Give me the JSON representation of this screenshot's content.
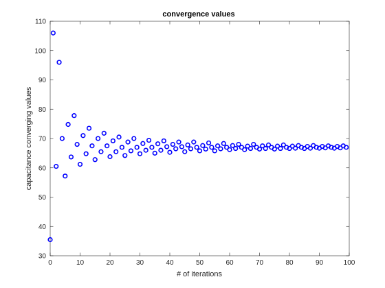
{
  "chart_data": {
    "type": "scatter",
    "title": "convergence values",
    "xlabel": "# of iterations",
    "ylabel": "capacitance converging values",
    "xlim": [
      0,
      100
    ],
    "ylim": [
      30,
      110
    ],
    "xticks": [
      "0",
      "10",
      "20",
      "30",
      "40",
      "50",
      "60",
      "70",
      "80",
      "90",
      "100"
    ],
    "yticks": [
      "30",
      "40",
      "50",
      "60",
      "70",
      "80",
      "90",
      "100",
      "110"
    ],
    "grid": false,
    "marker": "circle",
    "marker_color": "#0000ff",
    "series": [
      {
        "x": [
          0,
          1,
          2,
          3,
          4,
          5,
          6,
          7,
          8,
          9,
          10,
          11,
          12,
          13,
          14,
          15,
          16,
          17,
          18,
          19,
          20,
          21,
          22,
          23,
          24,
          25,
          26,
          27,
          28,
          29,
          30,
          31,
          32,
          33,
          34,
          35,
          36,
          37,
          38,
          39,
          40,
          41,
          42,
          43,
          44,
          45,
          46,
          47,
          48,
          49,
          50,
          51,
          52,
          53,
          54,
          55,
          56,
          57,
          58,
          59,
          60,
          61,
          62,
          63,
          64,
          65,
          66,
          67,
          68,
          69,
          70,
          71,
          72,
          73,
          74,
          75,
          76,
          77,
          78,
          79,
          80,
          81,
          82,
          83,
          84,
          85,
          86,
          87,
          88,
          89,
          90,
          91,
          92,
          93,
          94,
          95,
          96,
          97,
          98,
          99
        ],
        "y": [
          35.5,
          106,
          60.5,
          96,
          70,
          57.2,
          74.8,
          63.7,
          77.8,
          68,
          61.2,
          71,
          64.8,
          73.5,
          67.5,
          62.8,
          70,
          65.5,
          71.8,
          67.5,
          63.8,
          69.2,
          65.5,
          70.5,
          67,
          64.2,
          68.8,
          65.8,
          70,
          67,
          64.8,
          68.3,
          66,
          69.4,
          67,
          65,
          68.2,
          66,
          69.2,
          67.2,
          65.3,
          68,
          66.5,
          68.8,
          67.2,
          65.5,
          67.8,
          66.5,
          68.8,
          67,
          65.8,
          67.6,
          66.4,
          68.5,
          67,
          65.8,
          67.5,
          66.5,
          68.3,
          67,
          66.2,
          67.6,
          66.6,
          68,
          67,
          66.2,
          67.4,
          66.6,
          68,
          67,
          66.4,
          67.5,
          66.6,
          67.8,
          67,
          66.4,
          67.4,
          66.6,
          67.8,
          67,
          66.6,
          67.4,
          66.7,
          67.6,
          67,
          66.6,
          67.3,
          66.7,
          67.6,
          67,
          66.7,
          67.3,
          66.8,
          67.5,
          67,
          66.7,
          67.3,
          66.8,
          67.5,
          67
        ]
      }
    ]
  }
}
